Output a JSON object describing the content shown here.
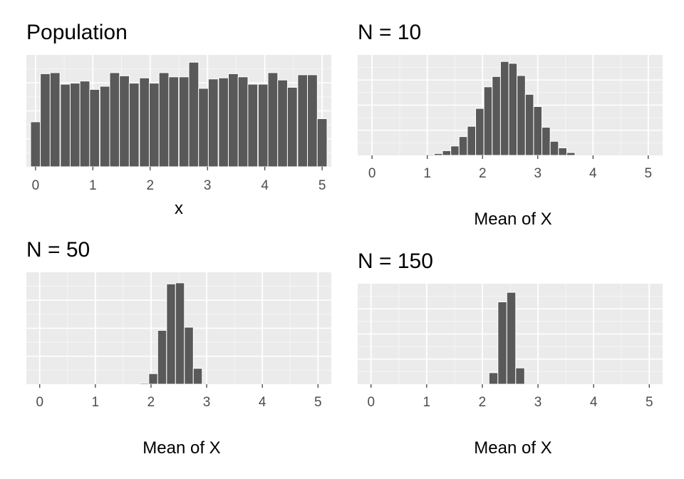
{
  "chart_data": [
    {
      "type": "bar",
      "title": "Population",
      "xlabel": "x",
      "ylabel": "",
      "xlim": [
        -0.16,
        5.16
      ],
      "ylim": [
        0,
        1.07
      ],
      "xticks": [
        "0",
        "1",
        "2",
        "3",
        "4",
        "5"
      ],
      "bin_width": 0.172,
      "x": [
        0,
        0.17,
        0.34,
        0.52,
        0.69,
        0.86,
        1.03,
        1.21,
        1.38,
        1.55,
        1.72,
        1.9,
        2.07,
        2.24,
        2.41,
        2.59,
        2.76,
        2.93,
        3.1,
        3.28,
        3.45,
        3.62,
        3.79,
        3.97,
        4.14,
        4.31,
        4.48,
        4.66,
        4.83,
        5.0
      ],
      "values": [
        0.43,
        0.89,
        0.9,
        0.79,
        0.8,
        0.82,
        0.74,
        0.77,
        0.9,
        0.87,
        0.8,
        0.85,
        0.8,
        0.9,
        0.86,
        0.86,
        1.0,
        0.75,
        0.84,
        0.85,
        0.89,
        0.86,
        0.79,
        0.79,
        0.9,
        0.83,
        0.76,
        0.88,
        0.88,
        0.46
      ]
    },
    {
      "type": "bar",
      "title": "N = 10",
      "xlabel": "Mean of X",
      "ylabel": "",
      "xlim": [
        -0.26,
        5.26
      ],
      "ylim": [
        0,
        1.07
      ],
      "xticks": [
        "0",
        "1",
        "2",
        "3",
        "4",
        "5"
      ],
      "bin_width": 0.15,
      "x": [
        1.05,
        1.2,
        1.35,
        1.5,
        1.65,
        1.8,
        1.95,
        2.1,
        2.25,
        2.4,
        2.55,
        2.7,
        2.85,
        3.0,
        3.15,
        3.3,
        3.45,
        3.6
      ],
      "values": [
        0.01,
        0.02,
        0.05,
        0.1,
        0.2,
        0.31,
        0.5,
        0.73,
        0.84,
        1.0,
        0.98,
        0.85,
        0.65,
        0.52,
        0.3,
        0.15,
        0.08,
        0.03
      ]
    },
    {
      "type": "bar",
      "title": "N = 50",
      "xlabel": "Mean of X",
      "ylabel": "",
      "xlim": [
        -0.24,
        5.24
      ],
      "ylim": [
        0,
        1.06
      ],
      "xticks": [
        "0",
        "1",
        "2",
        "3",
        "4",
        "5"
      ],
      "bin_width": 0.16,
      "x": [
        1.88,
        2.04,
        2.2,
        2.36,
        2.52,
        2.68,
        2.84
      ],
      "values": [
        0.01,
        0.1,
        0.51,
        0.95,
        0.96,
        0.54,
        0.15
      ]
    },
    {
      "type": "bar",
      "title": "N = 150",
      "xlabel": "Mean of X",
      "ylabel": "",
      "xlim": [
        -0.24,
        5.24
      ],
      "ylim": [
        0,
        1.05
      ],
      "xticks": [
        "0",
        "1",
        "2",
        "3",
        "4",
        "5"
      ],
      "bin_width": 0.16,
      "x": [
        2.2,
        2.36,
        2.52,
        2.68
      ],
      "values": [
        0.12,
        0.86,
        0.96,
        0.17
      ]
    }
  ],
  "colors": {
    "panel": "#ebebeb",
    "grid_major": "#ffffff",
    "bar_fill": "#595959",
    "bar_border": "#ffffff",
    "tick_text": "#4d4d4d"
  }
}
